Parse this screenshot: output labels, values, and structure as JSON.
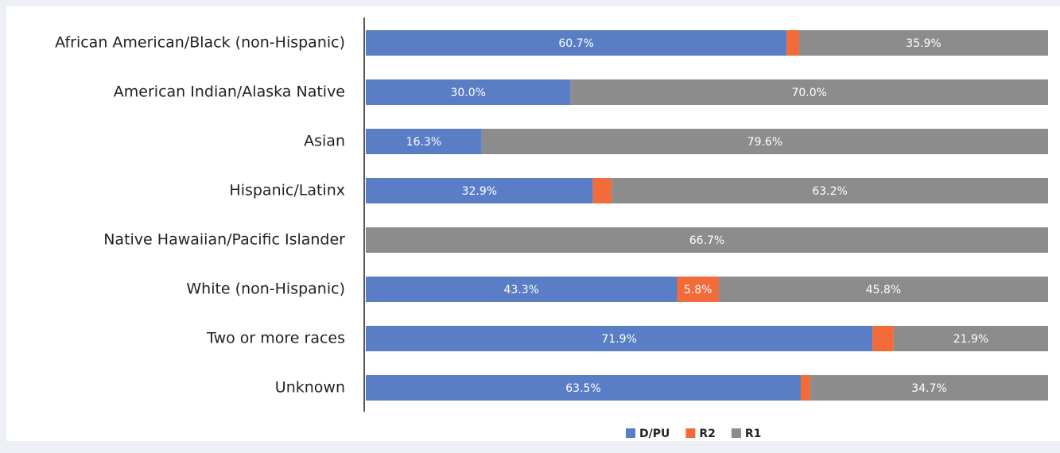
{
  "chart_data": {
    "type": "bar100h",
    "categories": [
      "African American/Black (non-Hispanic)",
      "American Indian/Alaska Native",
      "Asian",
      "Hispanic/Latinx",
      "Native Hawaiian/Pacific Islander",
      "White (non-Hispanic)",
      "Two or more races",
      "Unknown"
    ],
    "series": [
      {
        "name": "D/PU",
        "color": "#5a7ec6",
        "values": [
          60.7,
          30.0,
          16.3,
          32.9,
          0,
          43.3,
          71.9,
          63.5
        ],
        "value_labels": [
          "60.7%",
          "30.0%",
          "16.3%",
          "32.9%",
          null,
          "43.3%",
          "71.9%",
          "63.5%"
        ]
      },
      {
        "name": "R2",
        "color": "#f26b38",
        "values": [
          1.8,
          0,
          0,
          2.7,
          0,
          5.8,
          3.0,
          1.4
        ],
        "value_labels": [
          null,
          null,
          null,
          null,
          null,
          "5.8%",
          null,
          null
        ]
      },
      {
        "name": "R1",
        "color": "#8c8c8c",
        "values": [
          35.9,
          70.0,
          79.6,
          63.2,
          66.7,
          45.8,
          21.9,
          34.7
        ],
        "value_labels": [
          "35.9%",
          "70.0%",
          "79.6%",
          "63.2%",
          "66.7%",
          "45.8%",
          "21.9%",
          "34.7%"
        ]
      }
    ],
    "legend": "bottom"
  }
}
